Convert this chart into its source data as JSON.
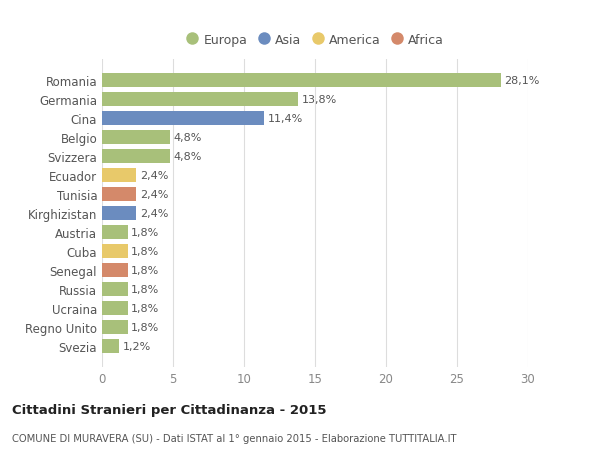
{
  "categories": [
    "Romania",
    "Germania",
    "Cina",
    "Belgio",
    "Svizzera",
    "Ecuador",
    "Tunisia",
    "Kirghizistan",
    "Austria",
    "Cuba",
    "Senegal",
    "Russia",
    "Ucraina",
    "Regno Unito",
    "Svezia"
  ],
  "values": [
    28.1,
    13.8,
    11.4,
    4.8,
    4.8,
    2.4,
    2.4,
    2.4,
    1.8,
    1.8,
    1.8,
    1.8,
    1.8,
    1.8,
    1.2
  ],
  "labels": [
    "28,1%",
    "13,8%",
    "11,4%",
    "4,8%",
    "4,8%",
    "2,4%",
    "2,4%",
    "2,4%",
    "1,8%",
    "1,8%",
    "1,8%",
    "1,8%",
    "1,8%",
    "1,8%",
    "1,2%"
  ],
  "continents": [
    "Europa",
    "Europa",
    "Asia",
    "Europa",
    "Europa",
    "America",
    "Africa",
    "Asia",
    "Europa",
    "America",
    "Africa",
    "Europa",
    "Europa",
    "Europa",
    "Europa"
  ],
  "colors": {
    "Europa": "#a8c07a",
    "Asia": "#6b8cbf",
    "America": "#e8c96a",
    "Africa": "#d4896a"
  },
  "legend_order": [
    "Europa",
    "Asia",
    "America",
    "Africa"
  ],
  "xlim": [
    0,
    30
  ],
  "xticks": [
    0,
    5,
    10,
    15,
    20,
    25,
    30
  ],
  "title": "Cittadini Stranieri per Cittadinanza - 2015",
  "subtitle": "COMUNE DI MURAVERA (SU) - Dati ISTAT al 1° gennaio 2015 - Elaborazione TUTTITALIA.IT",
  "bg_color": "#ffffff",
  "bar_height": 0.72,
  "grid_color": "#dddddd"
}
